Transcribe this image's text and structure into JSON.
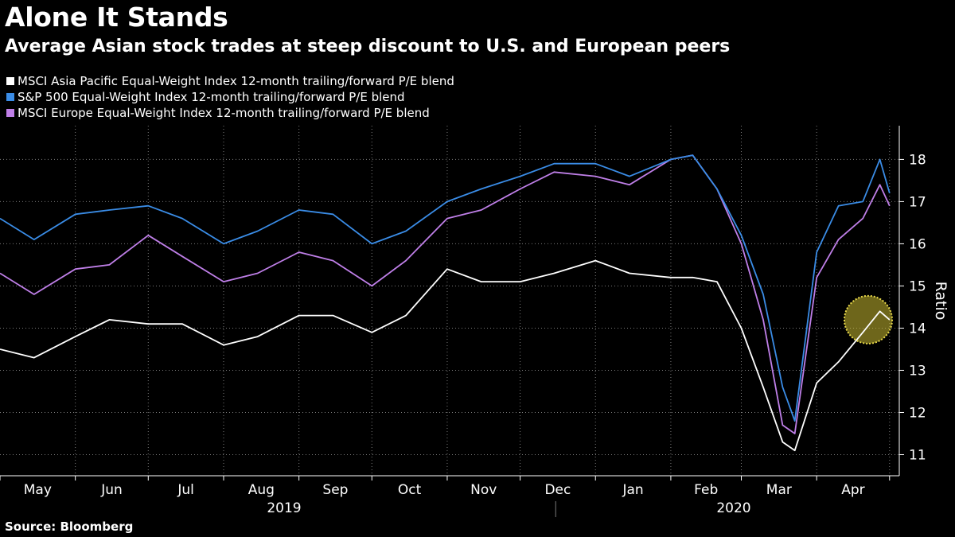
{
  "chart_data": {
    "type": "line",
    "title": "Alone It Stands",
    "subtitle": "Average Asian stock trades at steep discount to U.S. and European peers",
    "ylabel": "Ratio",
    "xlabel": "",
    "ylim": [
      10.5,
      18.8
    ],
    "yticks": [
      11,
      12,
      13,
      14,
      15,
      16,
      17,
      18
    ],
    "grid": true,
    "x_months": [
      "May",
      "Jun",
      "Jul",
      "Aug",
      "Sep",
      "Oct",
      "Nov",
      "Dec",
      "Jan",
      "Feb",
      "Mar",
      "Apr"
    ],
    "years": [
      "2019",
      "2020"
    ],
    "x": [
      "2019-05-01",
      "2019-05-15",
      "2019-06-01",
      "2019-06-15",
      "2019-07-01",
      "2019-07-15",
      "2019-08-01",
      "2019-08-15",
      "2019-09-01",
      "2019-09-15",
      "2019-10-01",
      "2019-10-15",
      "2019-11-01",
      "2019-11-15",
      "2019-12-01",
      "2019-12-15",
      "2020-01-01",
      "2020-01-15",
      "2020-02-01",
      "2020-02-10",
      "2020-02-20",
      "2020-03-01",
      "2020-03-10",
      "2020-03-18",
      "2020-03-23",
      "2020-04-01",
      "2020-04-10",
      "2020-04-20",
      "2020-04-27",
      "2020-05-01"
    ],
    "series": [
      {
        "name": "MSCI Asia Pacific Equal-Weight Index 12-month trailing/forward P/E blend",
        "color": "#ffffff",
        "values": [
          13.5,
          13.3,
          13.8,
          14.2,
          14.1,
          14.1,
          13.6,
          13.8,
          14.3,
          14.3,
          13.9,
          14.3,
          15.4,
          15.1,
          15.1,
          15.3,
          15.6,
          15.3,
          15.2,
          15.2,
          15.1,
          14.0,
          12.6,
          11.3,
          11.1,
          12.7,
          13.2,
          13.9,
          14.4,
          14.2
        ]
      },
      {
        "name": "S&P 500 Equal-Weight Index 12-month trailing/forward P/E blend",
        "color": "#3a8ce6",
        "values": [
          16.6,
          16.1,
          16.7,
          16.8,
          16.9,
          16.6,
          16.0,
          16.3,
          16.8,
          16.7,
          16.0,
          16.3,
          17.0,
          17.3,
          17.6,
          17.9,
          17.9,
          17.6,
          18.0,
          18.1,
          17.3,
          16.2,
          14.8,
          12.6,
          11.8,
          15.8,
          16.9,
          17.0,
          18.0,
          17.2
        ]
      },
      {
        "name": "MSCI Europe Equal-Weight Index 12-month trailing/forward P/E blend",
        "color": "#bf7fe8",
        "values": [
          15.3,
          14.8,
          15.4,
          15.5,
          16.2,
          15.7,
          15.1,
          15.3,
          15.8,
          15.6,
          15.0,
          15.6,
          16.6,
          16.8,
          17.3,
          17.7,
          17.6,
          17.4,
          18.0,
          18.1,
          17.3,
          16.0,
          14.2,
          11.7,
          11.5,
          15.2,
          16.1,
          16.6,
          17.4,
          16.9
        ]
      }
    ],
    "annotation": "highlight circle on latest MSCI Asia Pacific values"
  },
  "source": "Source: Bloomberg"
}
